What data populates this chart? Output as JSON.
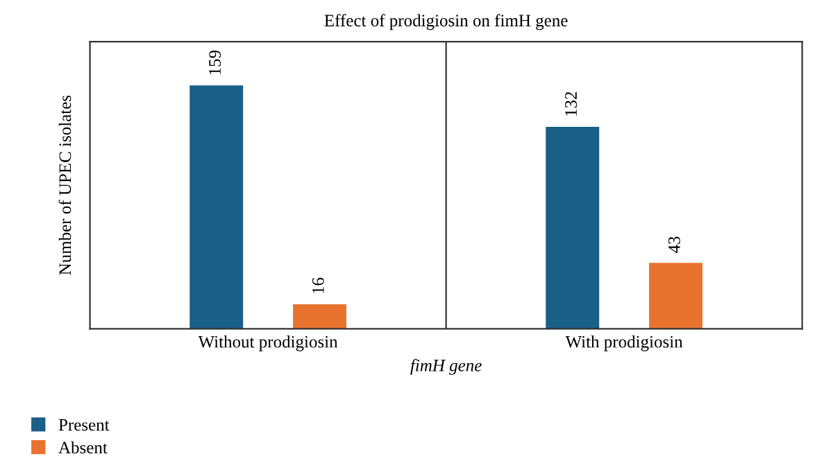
{
  "chart_data": {
    "type": "bar",
    "title": "Effect of prodigiosin on fimH gene",
    "xlabel": "fimH gene",
    "ylabel": "Number of UPEC isolates",
    "categories": [
      "Without prodigiosin",
      "With prodigiosin"
    ],
    "series": [
      {
        "name": "Present",
        "color": "#1a5f86",
        "values": [
          159,
          132
        ]
      },
      {
        "name": "Absent",
        "color": "#e8732f",
        "values": [
          16,
          43
        ]
      }
    ],
    "data_labels": true,
    "grid": "x",
    "legend": "bottom left"
  }
}
